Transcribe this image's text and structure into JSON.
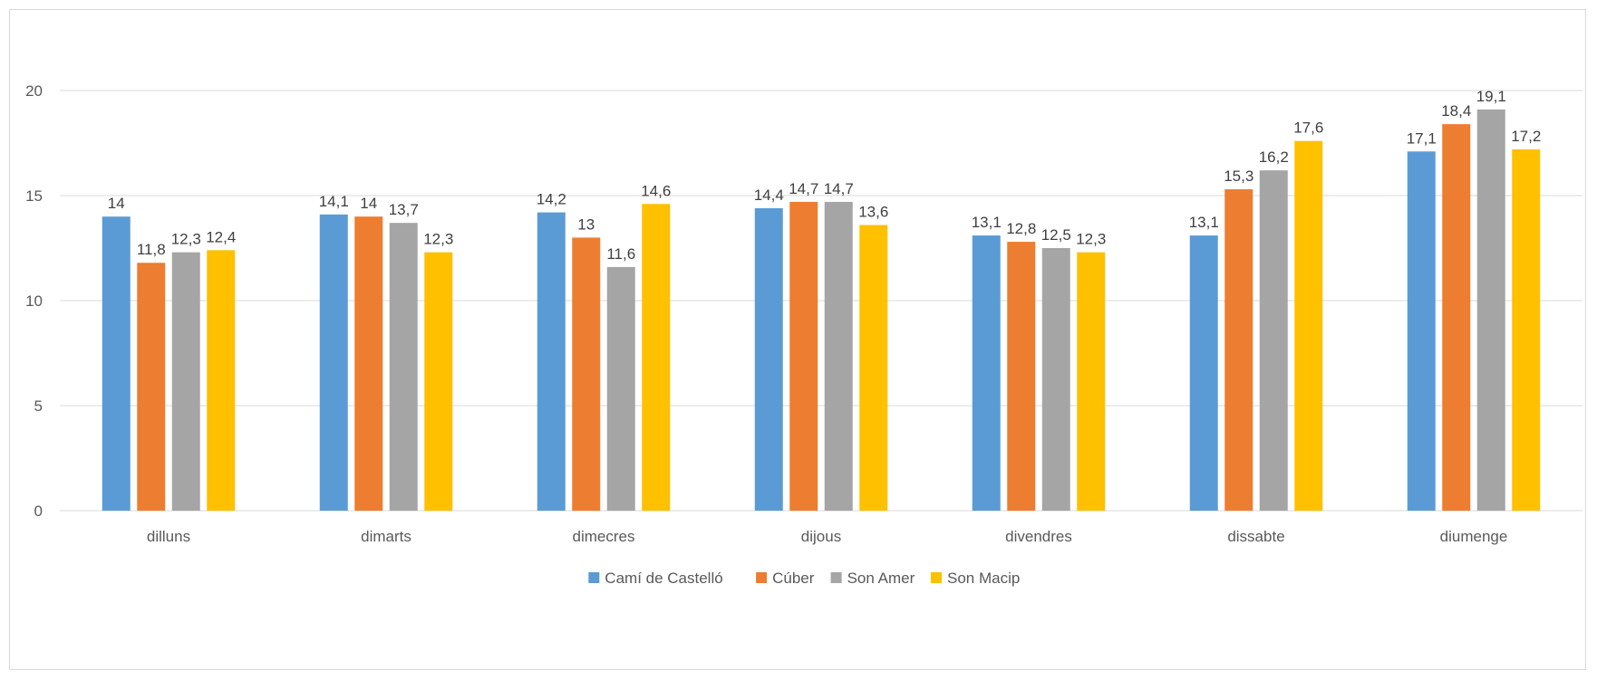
{
  "chart_data": {
    "type": "bar",
    "title": "",
    "xlabel": "",
    "ylabel": "",
    "categories": [
      "dilluns",
      "dimarts",
      "dimecres",
      "dijous",
      "divendres",
      "dissabte",
      "diumenge"
    ],
    "ylim": [
      0,
      20
    ],
    "yticks": [
      0,
      5,
      10,
      15,
      20
    ],
    "grid": true,
    "legend_position": "bottom",
    "series": [
      {
        "name": "Camí de Castelló",
        "color": "#5b9bd5",
        "values": [
          14,
          14.1,
          14.2,
          14.4,
          13.1,
          13.1,
          17.1
        ],
        "labels": [
          "14",
          "14,1",
          "14,2",
          "14,4",
          "13,1",
          "13,1",
          "17,1"
        ]
      },
      {
        "name": "Cúber",
        "color": "#ed7d31",
        "values": [
          11.8,
          14,
          13,
          14.7,
          12.8,
          15.3,
          18.4
        ],
        "labels": [
          "11,8",
          "14",
          "13",
          "14,7",
          "12,8",
          "15,3",
          "18,4"
        ]
      },
      {
        "name": "Son Amer",
        "color": "#a5a5a5",
        "values": [
          12.3,
          13.7,
          11.6,
          14.7,
          12.5,
          16.2,
          19.1
        ],
        "labels": [
          "12,3",
          "13,7",
          "11,6",
          "14,7",
          "12,5",
          "16,2",
          "19,1"
        ]
      },
      {
        "name": "Son Macip",
        "color": "#ffc000",
        "values": [
          12.4,
          12.3,
          14.6,
          13.6,
          12.3,
          17.6,
          17.2
        ],
        "labels": [
          "12,4",
          "12,3",
          "14,6",
          "13,6",
          "12,3",
          "17,6",
          "17,2"
        ]
      }
    ]
  }
}
